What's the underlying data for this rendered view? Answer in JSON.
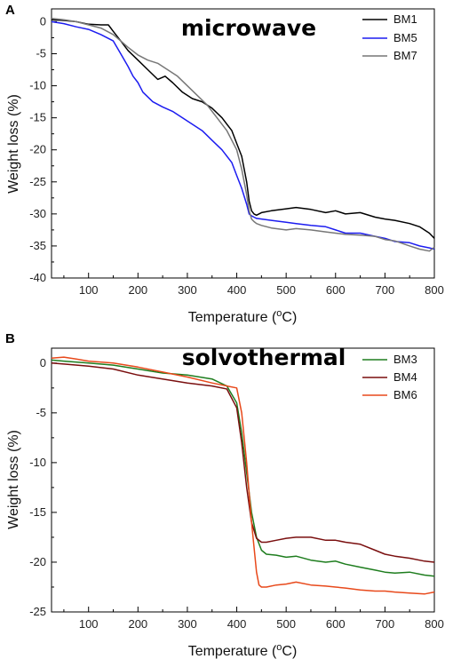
{
  "chart_data": [
    {
      "type": "line",
      "panel": "A",
      "title": "microwave",
      "xlabel": "Temperature (",
      "xlabel_sup": "o",
      "xlabel_end": "C)",
      "ylabel": "Weight loss (%)",
      "xlim": [
        25,
        800
      ],
      "ylim": [
        -40,
        2
      ],
      "xticks": [
        100,
        200,
        300,
        400,
        500,
        600,
        700,
        800
      ],
      "yticks": [
        0,
        -5,
        -10,
        -15,
        -20,
        -25,
        -30,
        -35,
        -40
      ],
      "grid": false,
      "legend_position": "top-right",
      "series": [
        {
          "name": "BM1",
          "color": "#000000",
          "x": [
            25,
            50,
            75,
            100,
            125,
            140,
            150,
            165,
            180,
            200,
            220,
            240,
            255,
            270,
            290,
            310,
            330,
            350,
            370,
            390,
            400,
            410,
            420,
            425,
            430,
            435,
            440,
            450,
            470,
            500,
            520,
            550,
            580,
            600,
            620,
            650,
            680,
            700,
            720,
            750,
            770,
            790,
            800
          ],
          "y": [
            0.3,
            0.2,
            0,
            -0.4,
            -0.5,
            -0.5,
            -1.5,
            -3,
            -4.5,
            -6,
            -7.5,
            -9,
            -8.5,
            -9.5,
            -11,
            -12,
            -12.5,
            -13.5,
            -15,
            -17,
            -19,
            -21,
            -25,
            -28,
            -29.5,
            -30,
            -30.2,
            -29.8,
            -29.5,
            -29.2,
            -29,
            -29.3,
            -29.8,
            -29.5,
            -30,
            -29.8,
            -30.5,
            -30.8,
            -31,
            -31.5,
            -32,
            -33,
            -33.8
          ]
        },
        {
          "name": "BM5",
          "color": "#1c1cf0",
          "x": [
            25,
            50,
            75,
            100,
            125,
            150,
            165,
            180,
            190,
            200,
            210,
            230,
            250,
            270,
            290,
            310,
            330,
            350,
            370,
            390,
            400,
            410,
            420,
            425,
            430,
            435,
            440,
            450,
            470,
            500,
            520,
            550,
            580,
            600,
            620,
            650,
            680,
            700,
            720,
            750,
            770,
            790,
            800
          ],
          "y": [
            0,
            -0.3,
            -0.8,
            -1.2,
            -2,
            -3,
            -5,
            -7,
            -8.5,
            -9.5,
            -11,
            -12.5,
            -13.3,
            -14,
            -15,
            -16,
            -17,
            -18.5,
            -20,
            -22,
            -24,
            -26,
            -28.5,
            -30,
            -30.3,
            -30.5,
            -30.7,
            -30.8,
            -31,
            -31.3,
            -31.5,
            -31.8,
            -32,
            -32.5,
            -33,
            -33,
            -33.5,
            -33.8,
            -34.3,
            -34.5,
            -35,
            -35.3,
            -35.5
          ]
        },
        {
          "name": "BM7",
          "color": "#777777",
          "x": [
            25,
            50,
            75,
            100,
            125,
            150,
            165,
            180,
            200,
            220,
            240,
            260,
            280,
            300,
            320,
            340,
            360,
            380,
            400,
            410,
            420,
            425,
            430,
            435,
            440,
            450,
            470,
            500,
            520,
            550,
            580,
            600,
            620,
            650,
            680,
            700,
            720,
            750,
            770,
            790,
            800
          ],
          "y": [
            0.5,
            0.3,
            0,
            -0.5,
            -1,
            -2,
            -3,
            -4,
            -5.2,
            -6,
            -6.5,
            -7.5,
            -8.5,
            -10,
            -11.5,
            -13,
            -15,
            -17,
            -20,
            -23,
            -27,
            -29.5,
            -30.8,
            -31.2,
            -31.5,
            -31.8,
            -32.2,
            -32.5,
            -32.3,
            -32.5,
            -32.8,
            -33,
            -33.2,
            -33.3,
            -33.5,
            -34,
            -34.2,
            -35,
            -35.5,
            -35.8,
            -35.2
          ]
        }
      ]
    },
    {
      "type": "line",
      "panel": "B",
      "title": "solvothermal",
      "xlabel": "Temperature (",
      "xlabel_sup": "o",
      "xlabel_end": "C)",
      "ylabel": "Weight loss (%)",
      "xlim": [
        25,
        800
      ],
      "ylim": [
        -25,
        1.5
      ],
      "xticks": [
        100,
        200,
        300,
        400,
        500,
        600,
        700,
        800
      ],
      "yticks": [
        0,
        -5,
        -10,
        -15,
        -20,
        -25
      ],
      "grid": false,
      "legend_position": "top-right",
      "series": [
        {
          "name": "BM3",
          "color": "#1e7d1e",
          "x": [
            25,
            50,
            100,
            150,
            200,
            250,
            300,
            350,
            380,
            400,
            410,
            420,
            430,
            440,
            450,
            460,
            480,
            500,
            520,
            550,
            580,
            600,
            620,
            650,
            680,
            700,
            720,
            750,
            780,
            800
          ],
          "y": [
            0.3,
            0.2,
            0,
            -0.2,
            -0.6,
            -1,
            -1.2,
            -1.6,
            -2.3,
            -4,
            -7,
            -11,
            -15,
            -17.5,
            -18.8,
            -19.2,
            -19.3,
            -19.5,
            -19.4,
            -19.8,
            -20,
            -19.9,
            -20.2,
            -20.5,
            -20.8,
            -21,
            -21.1,
            -21,
            -21.3,
            -21.4
          ]
        },
        {
          "name": "BM4",
          "color": "#7a0f0f",
          "x": [
            25,
            50,
            100,
            150,
            200,
            250,
            300,
            350,
            380,
            400,
            410,
            420,
            430,
            440,
            450,
            460,
            480,
            500,
            520,
            550,
            580,
            600,
            620,
            650,
            680,
            700,
            720,
            750,
            780,
            800
          ],
          "y": [
            0,
            -0.1,
            -0.3,
            -0.6,
            -1.2,
            -1.6,
            -2,
            -2.3,
            -2.6,
            -4.5,
            -8,
            -12.5,
            -16,
            -17.6,
            -18,
            -18,
            -17.8,
            -17.6,
            -17.5,
            -17.5,
            -17.8,
            -17.8,
            -18,
            -18.2,
            -18.8,
            -19.2,
            -19.4,
            -19.6,
            -19.9,
            -20
          ]
        },
        {
          "name": "BM6",
          "color": "#e8491b",
          "x": [
            25,
            50,
            75,
            100,
            150,
            200,
            250,
            300,
            350,
            380,
            400,
            410,
            420,
            430,
            440,
            445,
            450,
            460,
            480,
            500,
            520,
            550,
            580,
            600,
            620,
            650,
            680,
            700,
            720,
            750,
            780,
            800
          ],
          "y": [
            0.5,
            0.6,
            0.4,
            0.2,
            0,
            -0.4,
            -0.9,
            -1.4,
            -2,
            -2.3,
            -2.5,
            -5,
            -10,
            -16,
            -21,
            -22.3,
            -22.5,
            -22.5,
            -22.3,
            -22.2,
            -22,
            -22.3,
            -22.4,
            -22.5,
            -22.6,
            -22.8,
            -22.9,
            -22.9,
            -23,
            -23.1,
            -23.2,
            -23
          ]
        }
      ]
    }
  ]
}
